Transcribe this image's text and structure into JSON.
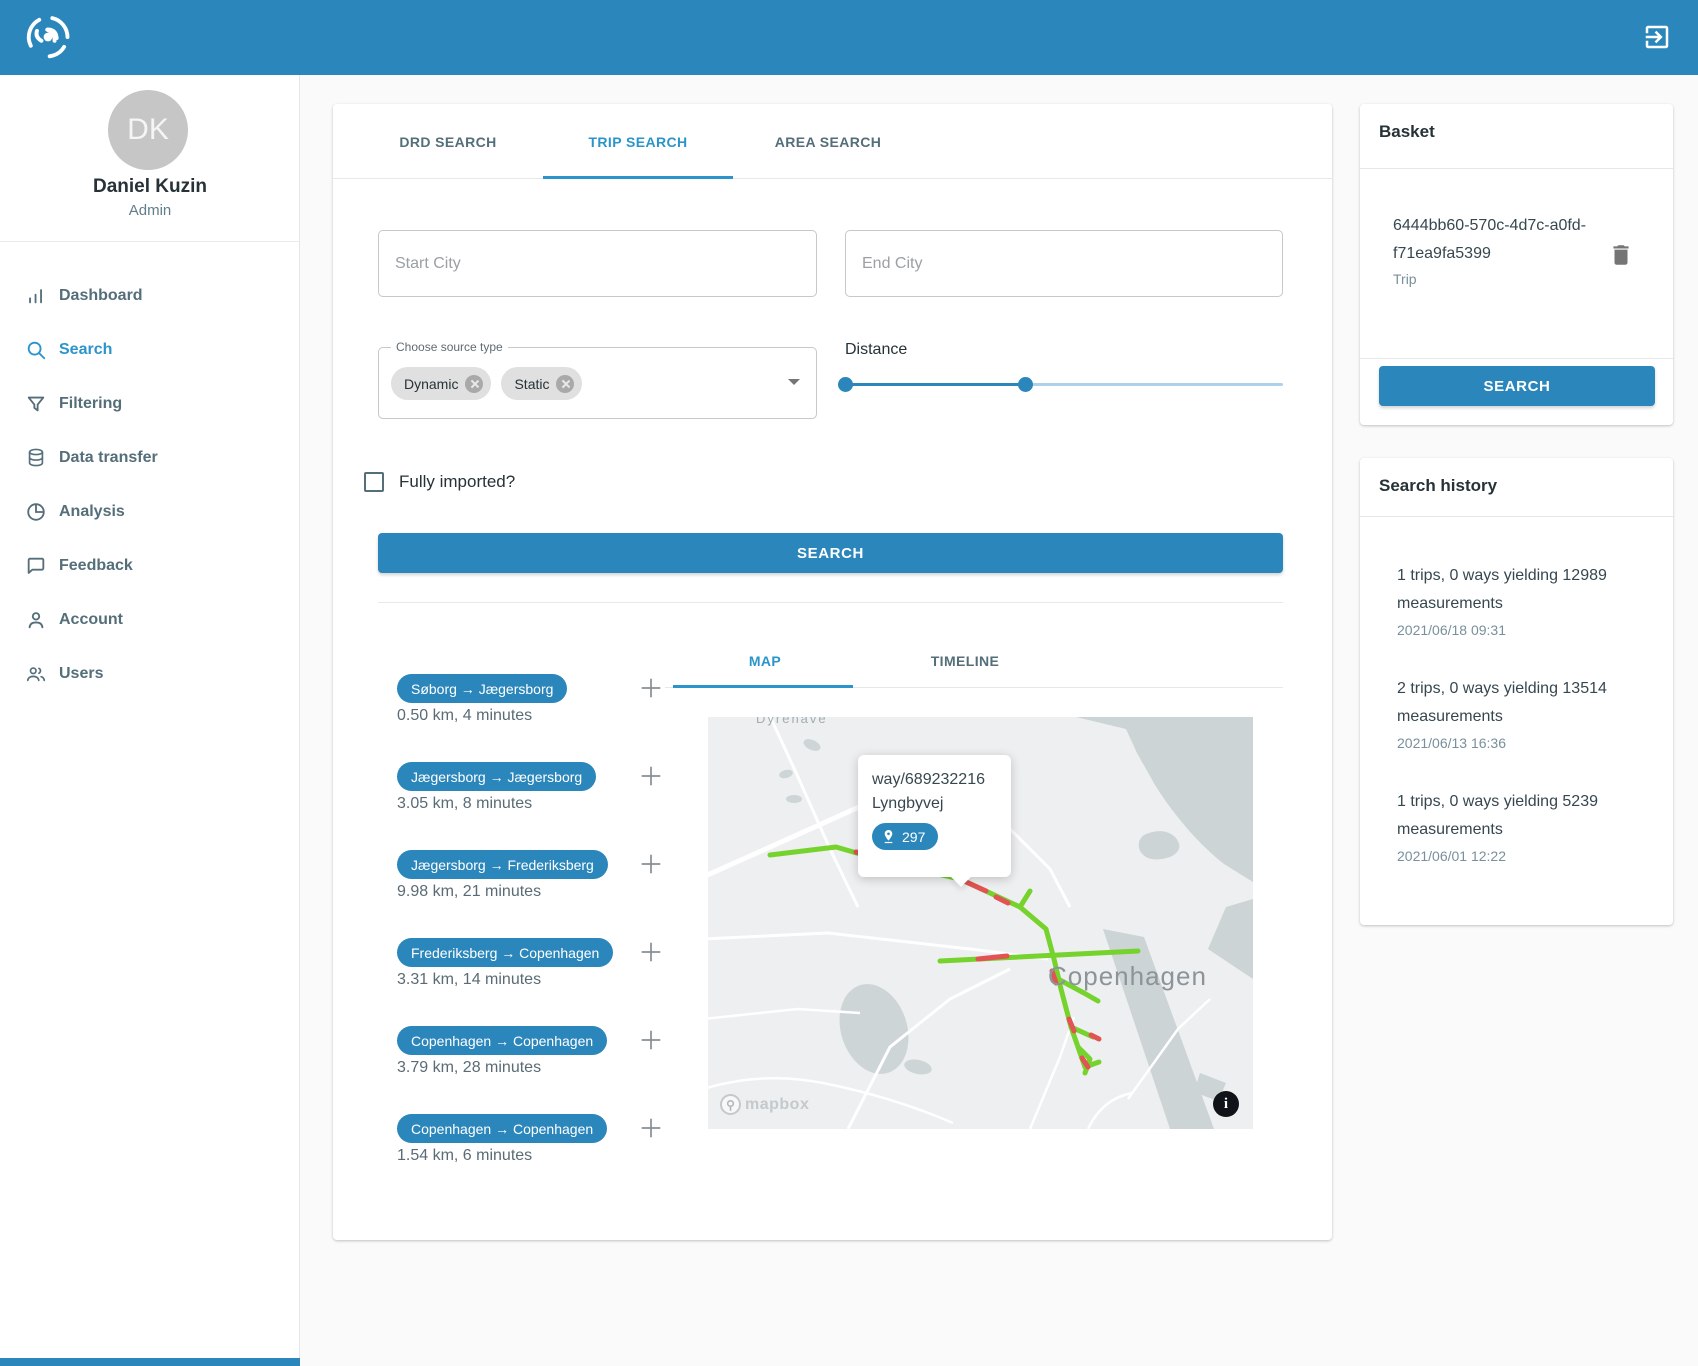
{
  "sidebar": {
    "avatar_initials": "DK",
    "user_name": "Daniel Kuzin",
    "user_role": "Admin",
    "items": [
      {
        "label": "Dashboard",
        "icon": "bar-chart-icon",
        "active": false
      },
      {
        "label": "Search",
        "icon": "search-icon",
        "active": true
      },
      {
        "label": "Filtering",
        "icon": "filter-icon",
        "active": false
      },
      {
        "label": "Data transfer",
        "icon": "database-icon",
        "active": false
      },
      {
        "label": "Analysis",
        "icon": "pie-chart-icon",
        "active": false
      },
      {
        "label": "Feedback",
        "icon": "chat-bubble-icon",
        "active": false
      },
      {
        "label": "Account",
        "icon": "person-icon",
        "active": false
      },
      {
        "label": "Users",
        "icon": "people-icon",
        "active": false
      }
    ]
  },
  "search_card": {
    "tabs": [
      {
        "label": "DRD SEARCH",
        "active": false
      },
      {
        "label": "TRIP SEARCH",
        "active": true
      },
      {
        "label": "AREA SEARCH",
        "active": false
      }
    ],
    "start_city_placeholder": "Start City",
    "end_city_placeholder": "End City",
    "source_type": {
      "label": "Choose source type",
      "chips": [
        "Dynamic",
        "Static"
      ]
    },
    "distance": {
      "label": "Distance",
      "selected_range_percent": [
        0,
        41
      ]
    },
    "fully_imported_label": "Fully imported?",
    "fully_imported_checked": false,
    "search_button_label": "SEARCH"
  },
  "trips": [
    {
      "route": "Søborg → Jægersborg",
      "details": "0.50 km, 4 minutes"
    },
    {
      "route": "Jægersborg → Jægersborg",
      "details": "3.05 km, 8 minutes"
    },
    {
      "route": "Jægersborg → Frederiksberg",
      "details": "9.98 km, 21 minutes"
    },
    {
      "route": "Frederiksberg → Copenhagen",
      "details": "3.31 km, 14 minutes"
    },
    {
      "route": "Copenhagen → Copenhagen",
      "details": "3.79 km, 28 minutes"
    },
    {
      "route": "Copenhagen → Copenhagen",
      "details": "1.54 km, 6 minutes"
    }
  ],
  "results": {
    "tabs": [
      {
        "label": "MAP",
        "active": true
      },
      {
        "label": "TIMELINE",
        "active": false
      }
    ],
    "map": {
      "area_label": "Dyrehave",
      "city_label": "Copenhagen",
      "attribution": "mapbox",
      "popup": {
        "way_id": "way/689232216",
        "street": "Lyngbyvej",
        "count": "297"
      }
    }
  },
  "basket": {
    "title": "Basket",
    "items": [
      {
        "id": "6444bb60-570c-4d7c-a0fd-f71ea9fa5399",
        "type": "Trip"
      }
    ],
    "search_button_label": "SEARCH"
  },
  "search_history": {
    "title": "Search history",
    "items": [
      {
        "summary": "1 trips, 0 ways yielding 12989 measurements",
        "timestamp": "2021/06/18 09:31"
      },
      {
        "summary": "2 trips, 0 ways yielding 13514 measurements",
        "timestamp": "2021/06/13 16:36"
      },
      {
        "summary": "1 trips, 0 ways yielding 5239 measurements",
        "timestamp": "2021/06/01 12:22"
      }
    ]
  },
  "colors": {
    "primary": "#2b87bb",
    "accent": "#2b95cb",
    "route_green": "#76d22c",
    "route_alert_red": "#e25353",
    "water": "#ccd4d6",
    "land": "#edeff0"
  }
}
